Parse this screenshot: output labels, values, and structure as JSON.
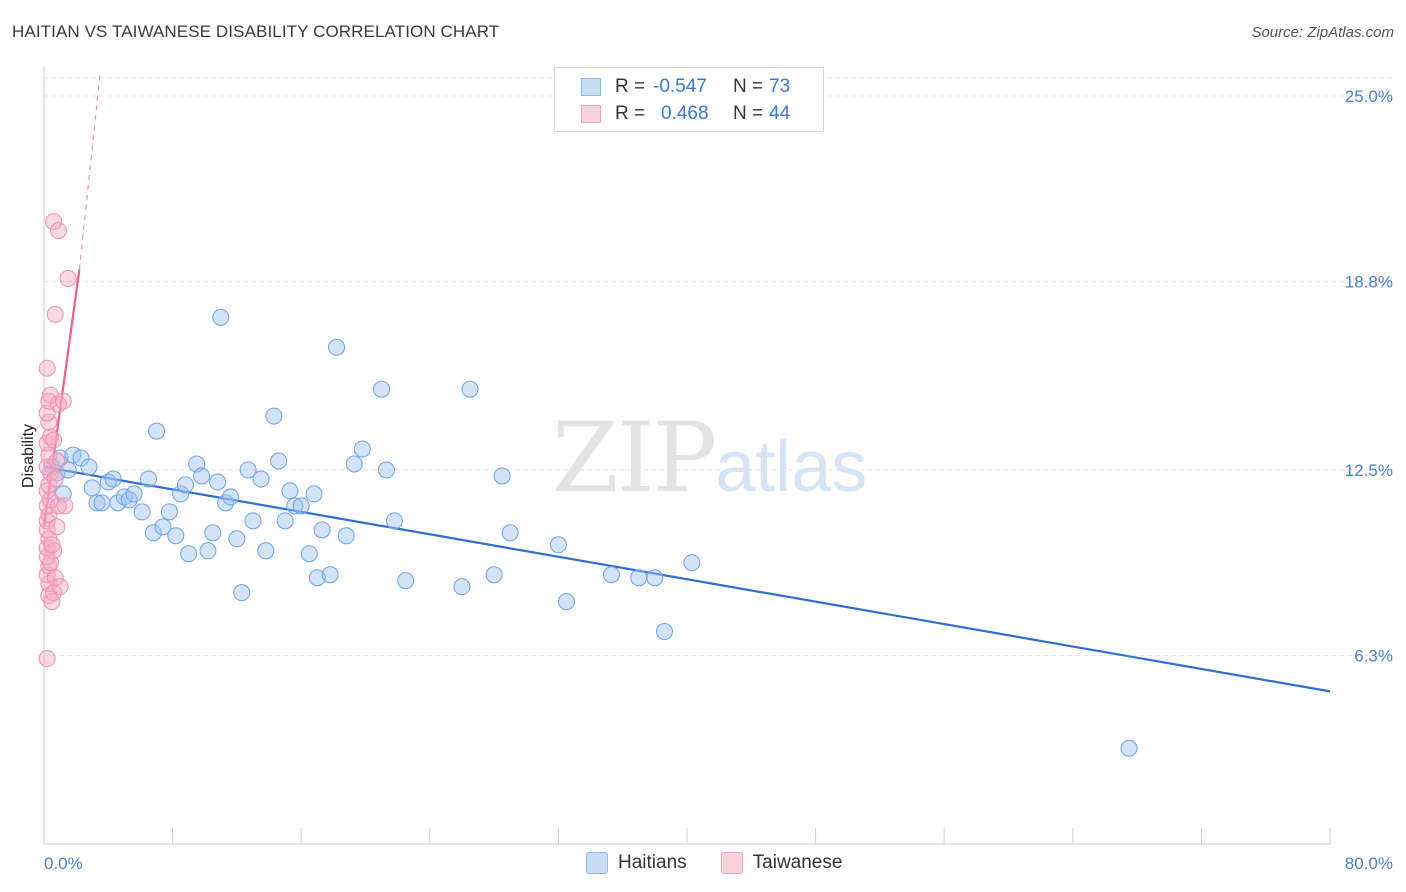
{
  "title": "HAITIAN VS TAIWANESE DISABILITY CORRELATION CHART",
  "source": "Source: ZipAtlas.com",
  "watermark": {
    "zip": "ZIP",
    "atlas": "atlas"
  },
  "legend": {
    "rows": [
      {
        "r_label": "R =",
        "r_value": "-0.547",
        "n_label": "N =",
        "n_value": "73",
        "color": "#a9c8f0"
      },
      {
        "r_label": "R =",
        "r_value": "0.468",
        "n_label": "N =",
        "n_value": "44",
        "color": "#f5b8cb"
      }
    ]
  },
  "bottom_legend": [
    {
      "label": "Haitians",
      "color": "#a9c8f0"
    },
    {
      "label": "Taiwanese",
      "color": "#f5b8cb"
    }
  ],
  "chart_data": {
    "type": "scatter",
    "ylabel": "Disability",
    "xlim": [
      0,
      80
    ],
    "ylim": [
      0,
      25.8
    ],
    "x_tick_labels": [
      "0.0%",
      "80.0%"
    ],
    "y_ticks": [
      6.3,
      12.5,
      18.8,
      25.0
    ],
    "y_tick_labels": [
      "6.3%",
      "12.5%",
      "18.8%",
      "25.0%"
    ],
    "grid": true,
    "series": [
      {
        "name": "Haitians",
        "color": "#6fa0e6",
        "trend": {
          "x0": 0,
          "y0": 12.6,
          "x1": 80,
          "y1": 5.1,
          "color": "#2f6fd1"
        },
        "points": [
          [
            0.5,
            12.6
          ],
          [
            0.8,
            12.4
          ],
          [
            1.0,
            12.9
          ],
          [
            1.2,
            11.7
          ],
          [
            1.5,
            12.5
          ],
          [
            1.8,
            13.0
          ],
          [
            2.3,
            12.9
          ],
          [
            2.8,
            12.6
          ],
          [
            3.0,
            11.9
          ],
          [
            3.3,
            11.4
          ],
          [
            3.6,
            11.4
          ],
          [
            4.0,
            12.1
          ],
          [
            4.3,
            12.2
          ],
          [
            4.6,
            11.4
          ],
          [
            5.0,
            11.6
          ],
          [
            5.3,
            11.5
          ],
          [
            5.6,
            11.7
          ],
          [
            6.1,
            11.1
          ],
          [
            6.5,
            12.2
          ],
          [
            6.8,
            10.4
          ],
          [
            7.0,
            13.8
          ],
          [
            7.4,
            10.6
          ],
          [
            7.8,
            11.1
          ],
          [
            8.2,
            10.3
          ],
          [
            8.5,
            11.7
          ],
          [
            8.8,
            12.0
          ],
          [
            9.0,
            9.7
          ],
          [
            9.5,
            12.7
          ],
          [
            9.8,
            12.3
          ],
          [
            10.2,
            9.8
          ],
          [
            10.5,
            10.4
          ],
          [
            10.8,
            12.1
          ],
          [
            11.0,
            17.6
          ],
          [
            11.3,
            11.4
          ],
          [
            11.6,
            11.6
          ],
          [
            12.0,
            10.2
          ],
          [
            12.3,
            8.4
          ],
          [
            12.7,
            12.5
          ],
          [
            13.0,
            10.8
          ],
          [
            13.5,
            12.2
          ],
          [
            13.8,
            9.8
          ],
          [
            14.3,
            14.3
          ],
          [
            14.6,
            12.8
          ],
          [
            15.0,
            10.8
          ],
          [
            15.3,
            11.8
          ],
          [
            15.6,
            11.3
          ],
          [
            16.0,
            11.3
          ],
          [
            16.5,
            9.7
          ],
          [
            16.8,
            11.7
          ],
          [
            17.0,
            8.9
          ],
          [
            17.3,
            10.5
          ],
          [
            17.8,
            9.0
          ],
          [
            18.2,
            16.6
          ],
          [
            18.8,
            10.3
          ],
          [
            19.3,
            12.7
          ],
          [
            19.8,
            13.2
          ],
          [
            21.0,
            15.2
          ],
          [
            21.3,
            12.5
          ],
          [
            21.8,
            10.8
          ],
          [
            22.5,
            8.8
          ],
          [
            26.0,
            8.6
          ],
          [
            26.5,
            15.2
          ],
          [
            28.0,
            9.0
          ],
          [
            28.5,
            12.3
          ],
          [
            29.0,
            10.4
          ],
          [
            32.0,
            10.0
          ],
          [
            32.5,
            8.1
          ],
          [
            35.3,
            9.0
          ],
          [
            37.0,
            8.9
          ],
          [
            38.0,
            8.9
          ],
          [
            38.6,
            7.1
          ],
          [
            40.3,
            9.4
          ],
          [
            67.5,
            3.2
          ]
        ]
      },
      {
        "name": "Taiwanese",
        "color": "#f49ab5",
        "trend": {
          "x0": 0,
          "y0": 10.6,
          "x1": 2.2,
          "y1": 19.2,
          "dash_to": {
            "x": 3.5,
            "y": 25.8
          },
          "color": "#e8608c"
        },
        "points": [
          [
            0.2,
            6.2
          ],
          [
            0.3,
            8.3
          ],
          [
            0.3,
            8.7
          ],
          [
            0.2,
            9.0
          ],
          [
            0.3,
            9.3
          ],
          [
            0.2,
            9.6
          ],
          [
            0.2,
            9.9
          ],
          [
            0.4,
            9.4
          ],
          [
            0.3,
            10.2
          ],
          [
            0.2,
            10.5
          ],
          [
            0.2,
            10.8
          ],
          [
            0.3,
            11.0
          ],
          [
            0.2,
            11.3
          ],
          [
            0.4,
            11.5
          ],
          [
            0.2,
            11.8
          ],
          [
            0.3,
            12.0
          ],
          [
            0.4,
            12.4
          ],
          [
            0.2,
            12.6
          ],
          [
            0.3,
            13.0
          ],
          [
            0.2,
            13.4
          ],
          [
            0.4,
            13.6
          ],
          [
            0.3,
            14.1
          ],
          [
            0.2,
            14.4
          ],
          [
            0.3,
            14.8
          ],
          [
            0.4,
            15.0
          ],
          [
            0.2,
            15.9
          ],
          [
            0.5,
            8.1
          ],
          [
            0.6,
            8.4
          ],
          [
            0.7,
            8.9
          ],
          [
            0.6,
            9.8
          ],
          [
            0.8,
            10.6
          ],
          [
            0.9,
            11.3
          ],
          [
            0.7,
            12.2
          ],
          [
            0.8,
            12.8
          ],
          [
            0.6,
            13.5
          ],
          [
            0.9,
            14.7
          ],
          [
            0.7,
            17.7
          ],
          [
            0.6,
            20.8
          ],
          [
            0.9,
            20.5
          ],
          [
            1.5,
            18.9
          ],
          [
            1.2,
            14.8
          ],
          [
            1.3,
            11.3
          ],
          [
            1.0,
            8.6
          ],
          [
            0.5,
            10.0
          ]
        ]
      }
    ]
  }
}
